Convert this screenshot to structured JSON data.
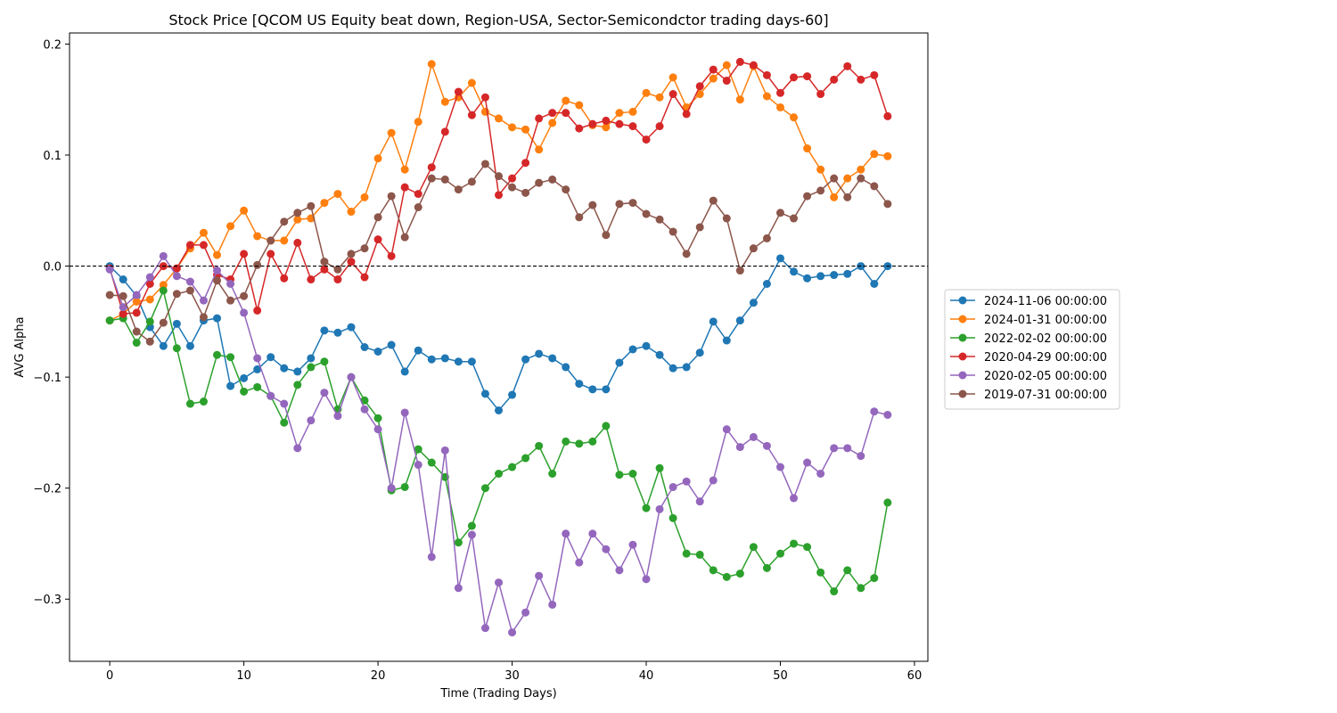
{
  "chart_data": {
    "type": "line",
    "title": "Stock Price [QCOM US Equity beat down, Region-USA, Sector-Semicondctor trading days-60]",
    "xlabel": "Time (Trading Days)",
    "ylabel": "AVG Alpha",
    "xlim": [
      -3,
      61
    ],
    "ylim": [
      -0.356,
      0.21
    ],
    "xticks": [
      0,
      10,
      20,
      30,
      40,
      50,
      60
    ],
    "yticks": [
      -0.3,
      -0.2,
      -0.1,
      0.0,
      0.1,
      0.2
    ],
    "ytick_labels": [
      "−0.3",
      "−0.2",
      "−0.1",
      "0.0",
      "0.1",
      "0.2"
    ],
    "reference_line": {
      "y": 0,
      "style": "dashed",
      "color": "#000000"
    },
    "legend_position": "right-center",
    "grid": false,
    "series": [
      {
        "name": "2024-11-06 00:00:00",
        "color": "#1f77b4",
        "values": [
          0.0,
          -0.012,
          -0.027,
          -0.055,
          -0.072,
          -0.052,
          -0.072,
          -0.049,
          -0.047,
          -0.108,
          -0.101,
          -0.093,
          -0.082,
          -0.092,
          -0.095,
          -0.083,
          -0.058,
          -0.06,
          -0.055,
          -0.073,
          -0.077,
          -0.071,
          -0.095,
          -0.076,
          -0.084,
          -0.083,
          -0.086,
          -0.086,
          -0.115,
          -0.13,
          -0.116,
          -0.084,
          -0.079,
          -0.083,
          -0.091,
          -0.106,
          -0.111,
          -0.111,
          -0.087,
          -0.075,
          -0.072,
          -0.08,
          -0.092,
          -0.091,
          -0.078,
          -0.05,
          -0.067,
          -0.049,
          -0.033,
          -0.016,
          0.007,
          -0.005,
          -0.011,
          -0.009,
          -0.008,
          -0.007,
          0.0,
          -0.016,
          0.0
        ]
      },
      {
        "name": "2024-01-31 00:00:00",
        "color": "#ff7f0e",
        "values": [
          -0.049,
          -0.043,
          -0.032,
          -0.03,
          -0.017,
          -0.002,
          0.016,
          0.03,
          0.01,
          0.036,
          0.05,
          0.027,
          0.023,
          0.023,
          0.042,
          0.043,
          0.057,
          0.065,
          0.049,
          0.062,
          0.097,
          0.12,
          0.087,
          0.13,
          0.182,
          0.148,
          0.152,
          0.165,
          0.139,
          0.133,
          0.125,
          0.123,
          0.105,
          0.129,
          0.149,
          0.145,
          0.127,
          0.125,
          0.138,
          0.139,
          0.156,
          0.152,
          0.17,
          0.143,
          0.155,
          0.169,
          0.181,
          0.15,
          0.18,
          0.153,
          0.143,
          0.134,
          0.106,
          0.087,
          0.062,
          0.079,
          0.087,
          0.101,
          0.099
        ]
      },
      {
        "name": "2022-02-02 00:00:00",
        "color": "#2ca02c",
        "values": [
          -0.049,
          -0.047,
          -0.069,
          -0.05,
          -0.022,
          -0.074,
          -0.124,
          -0.122,
          -0.08,
          -0.082,
          -0.113,
          -0.109,
          -0.117,
          -0.141,
          -0.107,
          -0.091,
          -0.086,
          -0.129,
          -0.1,
          -0.121,
          -0.137,
          -0.202,
          -0.199,
          -0.165,
          -0.177,
          -0.19,
          -0.249,
          -0.234,
          -0.2,
          -0.187,
          -0.181,
          -0.173,
          -0.162,
          -0.187,
          -0.158,
          -0.16,
          -0.158,
          -0.144,
          -0.188,
          -0.187,
          -0.218,
          -0.182,
          -0.227,
          -0.259,
          -0.26,
          -0.274,
          -0.28,
          -0.277,
          -0.253,
          -0.272,
          -0.259,
          -0.25,
          -0.253,
          -0.276,
          -0.293,
          -0.274,
          -0.29,
          -0.281,
          -0.213
        ]
      },
      {
        "name": "2020-04-29 00:00:00",
        "color": "#d62728",
        "values": [
          -0.002,
          -0.043,
          -0.042,
          -0.016,
          0.0,
          -0.002,
          0.019,
          0.019,
          -0.008,
          -0.012,
          0.011,
          -0.04,
          0.011,
          -0.011,
          0.021,
          -0.012,
          -0.003,
          -0.012,
          0.004,
          -0.01,
          0.024,
          0.009,
          0.071,
          0.065,
          0.089,
          0.121,
          0.157,
          0.136,
          0.152,
          0.064,
          0.079,
          0.093,
          0.133,
          0.138,
          0.138,
          0.124,
          0.128,
          0.131,
          0.128,
          0.126,
          0.114,
          0.126,
          0.155,
          0.137,
          0.162,
          0.177,
          0.167,
          0.184,
          0.181,
          0.172,
          0.156,
          0.17,
          0.171,
          0.155,
          0.168,
          0.18,
          0.168,
          0.172,
          0.135
        ]
      },
      {
        "name": "2020-02-05 00:00:00",
        "color": "#9467bd",
        "values": [
          -0.003,
          -0.037,
          -0.026,
          -0.01,
          0.009,
          -0.009,
          -0.014,
          -0.031,
          -0.004,
          -0.016,
          -0.042,
          -0.083,
          -0.117,
          -0.124,
          -0.164,
          -0.139,
          -0.114,
          -0.135,
          -0.1,
          -0.129,
          -0.147,
          -0.2,
          -0.132,
          -0.179,
          -0.262,
          -0.166,
          -0.29,
          -0.242,
          -0.326,
          -0.285,
          -0.33,
          -0.312,
          -0.279,
          -0.305,
          -0.241,
          -0.267,
          -0.241,
          -0.255,
          -0.274,
          -0.251,
          -0.282,
          -0.219,
          -0.199,
          -0.194,
          -0.212,
          -0.193,
          -0.147,
          -0.163,
          -0.154,
          -0.162,
          -0.181,
          -0.209,
          -0.177,
          -0.187,
          -0.164,
          -0.164,
          -0.171,
          -0.131,
          -0.134
        ]
      },
      {
        "name": "2019-07-31 00:00:00",
        "color": "#8c564b",
        "values": [
          -0.026,
          -0.027,
          -0.059,
          -0.068,
          -0.051,
          -0.025,
          -0.022,
          -0.046,
          -0.013,
          -0.031,
          -0.027,
          0.001,
          0.023,
          0.04,
          0.048,
          0.054,
          0.004,
          -0.003,
          0.011,
          0.016,
          0.044,
          0.063,
          0.026,
          0.053,
          0.079,
          0.078,
          0.069,
          0.076,
          0.092,
          0.081,
          0.071,
          0.066,
          0.075,
          0.078,
          0.069,
          0.044,
          0.055,
          0.028,
          0.056,
          0.057,
          0.047,
          0.042,
          0.031,
          0.011,
          0.035,
          0.059,
          0.043,
          -0.004,
          0.016,
          0.025,
          0.048,
          0.043,
          0.063,
          0.068,
          0.079,
          0.062,
          0.079,
          0.072,
          0.056
        ]
      }
    ]
  }
}
